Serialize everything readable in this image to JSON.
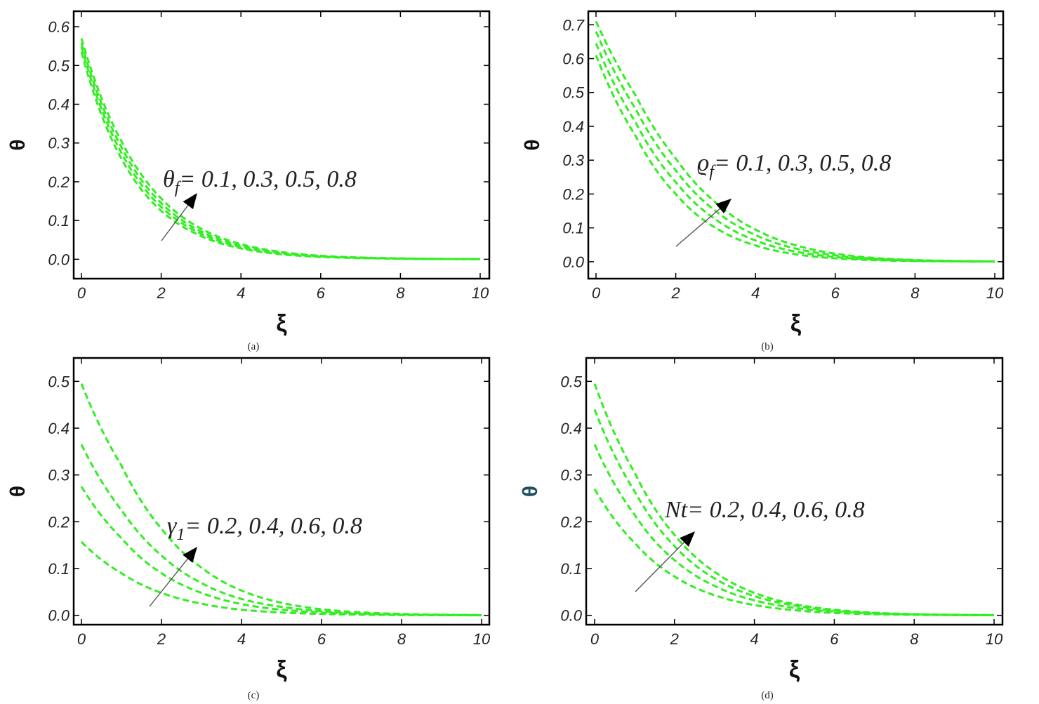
{
  "chart_data": [
    {
      "type": "line",
      "panel": "(a)",
      "xlabel": "ξ",
      "ylabel": "θ",
      "xlim": [
        0,
        10
      ],
      "ylim": [
        -0.05,
        0.64
      ],
      "xticks": [
        "0",
        "2",
        "4",
        "6",
        "8",
        "10"
      ],
      "yticks": [
        "0.0",
        "0.1",
        "0.2",
        "0.3",
        "0.4",
        "0.5",
        "0.6"
      ],
      "ytick_values": [
        0,
        0.1,
        0.2,
        0.3,
        0.4,
        0.5,
        0.6
      ],
      "annotation": {
        "symbol": "θ",
        "sub": "f",
        "text": "= 0.1, 0.3, 0.5, 0.8"
      },
      "ylabel_color": "#111111",
      "series": [
        {
          "values": [
            0.535,
            0.26,
            0.125,
            0.06,
            0.028,
            0.013,
            0.006,
            0.003,
            0.0015,
            0.0007,
            0.0003
          ]
        },
        {
          "values": [
            0.548,
            0.275,
            0.135,
            0.066,
            0.031,
            0.015,
            0.007,
            0.0035,
            0.0017,
            0.0008,
            0.0004
          ]
        },
        {
          "values": [
            0.558,
            0.29,
            0.145,
            0.072,
            0.035,
            0.017,
            0.008,
            0.004,
            0.002,
            0.0009,
            0.0004
          ]
        },
        {
          "values": [
            0.57,
            0.305,
            0.157,
            0.079,
            0.039,
            0.019,
            0.009,
            0.0045,
            0.0022,
            0.001,
            0.0005
          ]
        }
      ]
    },
    {
      "type": "line",
      "panel": "(b)",
      "xlabel": "ξ",
      "ylabel": "θ",
      "xlim": [
        0,
        10
      ],
      "ylim": [
        -0.05,
        0.74
      ],
      "xticks": [
        "0",
        "2",
        "4",
        "6",
        "8",
        "10"
      ],
      "yticks": [
        "0.0",
        "0.1",
        "0.2",
        "0.3",
        "0.4",
        "0.5",
        "0.6",
        "0.7"
      ],
      "ytick_values": [
        0,
        0.1,
        0.2,
        0.3,
        0.4,
        0.5,
        0.6,
        0.7
      ],
      "annotation": {
        "symbol": "ϱ",
        "sub": "f",
        "text": "= 0.1, 0.3, 0.5, 0.8"
      },
      "ylabel_color": "#111111",
      "series": [
        {
          "values": [
            0.61,
            0.37,
            0.2,
            0.1,
            0.048,
            0.022,
            0.01,
            0.0045,
            0.002,
            0.0009,
            0.0004
          ]
        },
        {
          "values": [
            0.645,
            0.41,
            0.235,
            0.125,
            0.063,
            0.03,
            0.014,
            0.0065,
            0.003,
            0.0013,
            0.0006
          ]
        },
        {
          "values": [
            0.68,
            0.45,
            0.27,
            0.15,
            0.079,
            0.039,
            0.019,
            0.009,
            0.004,
            0.0018,
            0.0008
          ]
        },
        {
          "values": [
            0.71,
            0.49,
            0.305,
            0.175,
            0.095,
            0.049,
            0.024,
            0.011,
            0.005,
            0.0022,
            0.001
          ]
        }
      ]
    },
    {
      "type": "line",
      "panel": "(c)",
      "xlabel": "ξ",
      "ylabel": "θ",
      "xlim": [
        0,
        10
      ],
      "ylim": [
        -0.02,
        0.55
      ],
      "xticks": [
        "0",
        "2",
        "4",
        "6",
        "8",
        "10"
      ],
      "yticks": [
        "0.0",
        "0.1",
        "0.2",
        "0.3",
        "0.4",
        "0.5"
      ],
      "ytick_values": [
        0,
        0.1,
        0.2,
        0.3,
        0.4,
        0.5
      ],
      "annotation": {
        "symbol": "γ",
        "sub": "1",
        "text": "= 0.2, 0.4, 0.6, 0.8"
      },
      "ylabel_color": "#111111",
      "series": [
        {
          "values": [
            0.157,
            0.09,
            0.048,
            0.025,
            0.012,
            0.006,
            0.003,
            0.0014,
            0.0006,
            0.0003,
            0.0001
          ]
        },
        {
          "values": [
            0.275,
            0.165,
            0.09,
            0.048,
            0.024,
            0.012,
            0.006,
            0.0028,
            0.0013,
            0.0006,
            0.0003
          ]
        },
        {
          "values": [
            0.365,
            0.225,
            0.128,
            0.069,
            0.035,
            0.018,
            0.009,
            0.0042,
            0.002,
            0.0009,
            0.0004
          ]
        },
        {
          "values": [
            0.495,
            0.32,
            0.185,
            0.102,
            0.053,
            0.027,
            0.013,
            0.0063,
            0.003,
            0.0014,
            0.0006
          ]
        }
      ]
    },
    {
      "type": "line",
      "panel": "(d)",
      "xlabel": "ξ",
      "ylabel": "θ",
      "xlim": [
        0,
        10
      ],
      "ylim": [
        -0.02,
        0.55
      ],
      "xticks": [
        "0",
        "2",
        "4",
        "6",
        "8",
        "10"
      ],
      "yticks": [
        "0.0",
        "0.1",
        "0.2",
        "0.3",
        "0.4",
        "0.5"
      ],
      "ytick_values": [
        0,
        0.1,
        0.2,
        0.3,
        0.4,
        0.5
      ],
      "annotation": {
        "symbol": "Nt",
        "sub": "",
        "text": "= 0.2, 0.4, 0.6, 0.8"
      },
      "ylabel_color": "#1f4f5f",
      "series": [
        {
          "values": [
            0.27,
            0.155,
            0.083,
            0.043,
            0.022,
            0.011,
            0.005,
            0.0024,
            0.0011,
            0.0005,
            0.0002
          ]
        },
        {
          "values": [
            0.365,
            0.215,
            0.118,
            0.063,
            0.032,
            0.016,
            0.008,
            0.0036,
            0.0017,
            0.0008,
            0.0003
          ]
        },
        {
          "values": [
            0.44,
            0.265,
            0.148,
            0.079,
            0.041,
            0.021,
            0.01,
            0.0048,
            0.0022,
            0.001,
            0.0004
          ]
        },
        {
          "values": [
            0.495,
            0.305,
            0.172,
            0.093,
            0.048,
            0.024,
            0.012,
            0.0056,
            0.0026,
            0.0012,
            0.0005
          ]
        }
      ]
    }
  ]
}
